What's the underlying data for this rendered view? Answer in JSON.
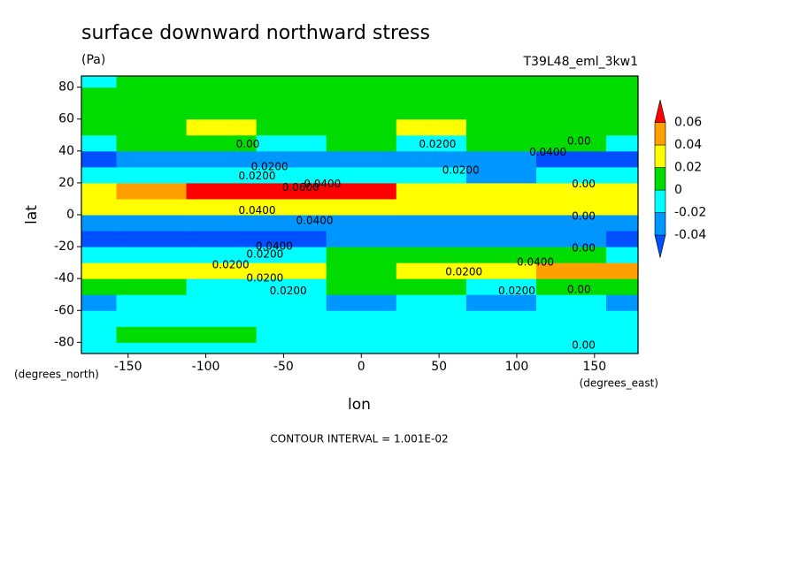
{
  "chart_data": {
    "type": "contour",
    "title": "surface downward northward stress",
    "subtitle": "(Pa)",
    "annotation": "T39L48_eml_3kw1",
    "x_label": "lon",
    "y_label": "lat",
    "x_units": "(degrees_east)",
    "y_units": "(degrees_north)",
    "footer": "CONTOUR INTERVAL = 1.001E-02",
    "xlim": [
      -180,
      178
    ],
    "ylim": [
      -87,
      87
    ],
    "xticks": [
      -150,
      -100,
      -50,
      0,
      50,
      100,
      150
    ],
    "yticks": [
      -80,
      -60,
      -40,
      -20,
      0,
      20,
      40,
      60,
      80
    ],
    "levels": [
      -0.04,
      -0.02,
      0,
      0.02,
      0.04,
      0.06
    ],
    "colors": [
      "#0050ff",
      "#0096ff",
      "#00ffff",
      "#00dc00",
      "#ffff00",
      "#ffa000",
      "#ff0000"
    ],
    "lon": [
      -180,
      -135,
      -90,
      -45,
      0,
      45,
      90,
      135,
      180
    ],
    "lat": [
      -85,
      -75,
      -65,
      -55,
      -45,
      -35,
      -25,
      -15,
      -5,
      5,
      15,
      25,
      35,
      45,
      55,
      65,
      75,
      85
    ],
    "z": [
      [
        -0.012,
        -0.012,
        -0.012,
        -0.012,
        -0.012,
        -0.012,
        -0.012,
        -0.005,
        -0.012
      ],
      [
        -0.008,
        0.005,
        0.005,
        -0.008,
        -0.008,
        -0.008,
        -0.008,
        -0.008,
        -0.008
      ],
      [
        -0.01,
        -0.01,
        -0.01,
        -0.01,
        -0.01,
        -0.01,
        -0.012,
        -0.01,
        -0.01
      ],
      [
        -0.025,
        -0.012,
        -0.012,
        -0.015,
        -0.022,
        -0.015,
        -0.025,
        -0.015,
        -0.025
      ],
      [
        0.005,
        0.01,
        -0.005,
        -0.005,
        0.005,
        0.005,
        -0.005,
        0.005,
        0.005
      ],
      [
        0.035,
        0.03,
        0.025,
        0.03,
        0.015,
        0.025,
        0.035,
        0.045,
        0.045
      ],
      [
        -0.01,
        -0.015,
        -0.02,
        -0.005,
        0.005,
        0.01,
        0.01,
        0.005,
        -0.01
      ],
      [
        -0.045,
        -0.045,
        -0.045,
        -0.045,
        -0.035,
        -0.025,
        -0.03,
        -0.03,
        -0.045
      ],
      [
        -0.03,
        -0.035,
        -0.035,
        -0.03,
        -0.03,
        -0.025,
        -0.03,
        -0.025,
        -0.03
      ],
      [
        0.025,
        0.025,
        0.025,
        0.025,
        0.025,
        0.025,
        0.025,
        0.025,
        0.025
      ],
      [
        0.035,
        0.05,
        0.065,
        0.065,
        0.06,
        0.035,
        0.025,
        0.025,
        0.035
      ],
      [
        -0.015,
        -0.015,
        -0.015,
        -0.012,
        -0.015,
        -0.015,
        -0.025,
        -0.015,
        -0.015
      ],
      [
        -0.045,
        -0.03,
        -0.025,
        -0.025,
        -0.025,
        -0.03,
        -0.035,
        -0.045,
        -0.045
      ],
      [
        -0.005,
        0.005,
        0.005,
        -0.005,
        0.005,
        -0.005,
        0.005,
        0.005,
        -0.005
      ],
      [
        0.015,
        0.015,
        0.025,
        0.015,
        0.015,
        0.025,
        0.015,
        0.015,
        0.015
      ],
      [
        0.01,
        0.01,
        0.01,
        0.01,
        0.01,
        0.01,
        0.01,
        0.01,
        0.01
      ],
      [
        0.008,
        0.008,
        0.01,
        0.008,
        0.008,
        0.008,
        0.01,
        0.01,
        0.008
      ],
      [
        -0.005,
        0.005,
        0.005,
        0.005,
        0.005,
        0.005,
        0.005,
        0.005,
        0.005
      ]
    ],
    "contour_labels": [
      {
        "value": 0,
        "label": "0.00",
        "lon": -73,
        "lat": 44
      },
      {
        "value": 0.02,
        "label": "0.0200",
        "lon": -59,
        "lat": 30
      },
      {
        "value": 0.02,
        "label": "0.0200",
        "lon": -67,
        "lat": 24
      },
      {
        "value": 0.06,
        "label": "0.0600",
        "lon": -39,
        "lat": 17
      },
      {
        "value": 0.04,
        "label": "0.0400",
        "lon": -25,
        "lat": 19
      },
      {
        "value": 0.04,
        "label": "0.0400",
        "lon": -67,
        "lat": 2.5
      },
      {
        "value": 0.04,
        "label": "0.0400",
        "lon": -30,
        "lat": -4
      },
      {
        "value": 0.04,
        "label": "0.0400",
        "lon": -56,
        "lat": -20
      },
      {
        "value": 0.02,
        "label": "0.0200",
        "lon": -62,
        "lat": -25
      },
      {
        "value": 0.02,
        "label": "0.0200",
        "lon": -84,
        "lat": -31.5
      },
      {
        "value": 0.02,
        "label": "0.0200",
        "lon": -62,
        "lat": -40
      },
      {
        "value": 0.02,
        "label": "0.0200",
        "lon": -47,
        "lat": -48
      },
      {
        "value": 0.02,
        "label": "0.0200",
        "lon": 49,
        "lat": 44
      },
      {
        "value": 0.02,
        "label": "0.0200",
        "lon": 64,
        "lat": 27.6
      },
      {
        "value": 0.04,
        "label": "0.0400",
        "lon": 120,
        "lat": 39
      },
      {
        "value": 0,
        "label": "0.00",
        "lon": 140,
        "lat": 46
      },
      {
        "value": 0,
        "label": "0.00",
        "lon": 143,
        "lat": 19
      },
      {
        "value": 0,
        "label": "0.00",
        "lon": 143,
        "lat": -1
      },
      {
        "value": 0,
        "label": "0.00",
        "lon": 143,
        "lat": -21
      },
      {
        "value": 0.02,
        "label": "0.0200",
        "lon": 66,
        "lat": -36
      },
      {
        "value": 0.04,
        "label": "0.0400",
        "lon": 112,
        "lat": -30
      },
      {
        "value": 0.02,
        "label": "0.0200",
        "lon": 100,
        "lat": -48
      },
      {
        "value": 0,
        "label": "0.00",
        "lon": 140,
        "lat": -47
      },
      {
        "value": 0,
        "label": "0.00",
        "lon": 143,
        "lat": -82
      }
    ]
  }
}
